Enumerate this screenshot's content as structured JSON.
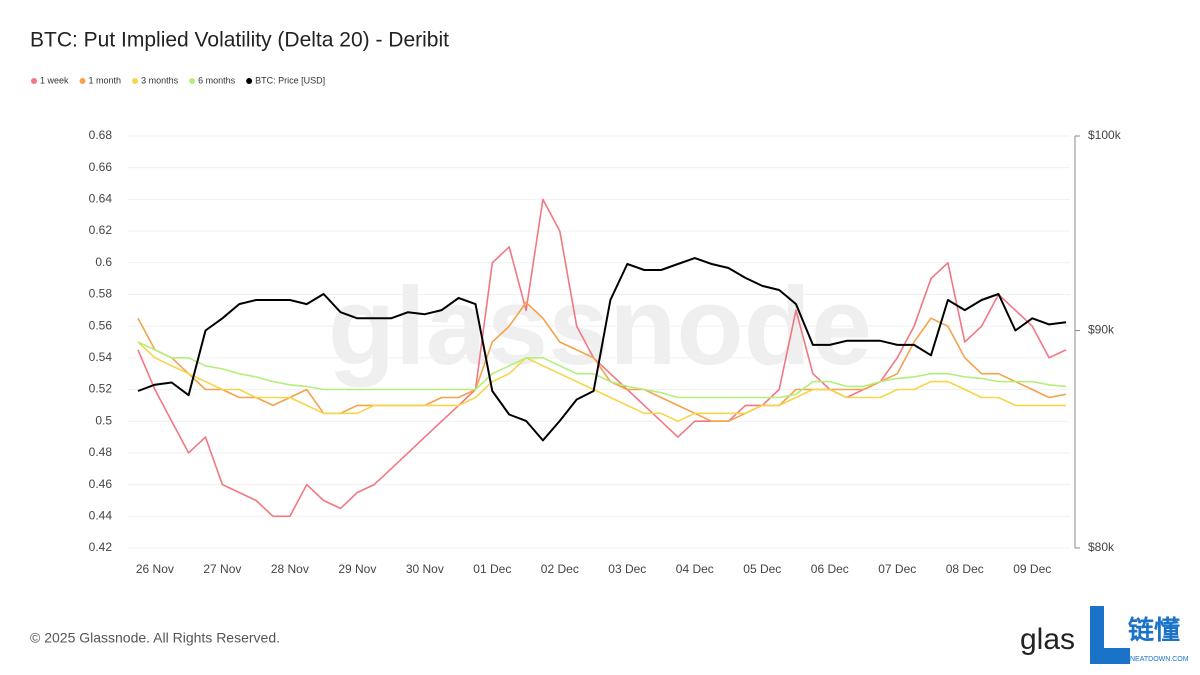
{
  "chart_data": {
    "type": "line",
    "title": "BTC: Put Implied Volatility (Delta 20) - Deribit",
    "watermark": "glassnode",
    "footer": "© 2025 Glassnode. All Rights Reserved.",
    "logo": "glas",
    "brand": "链懂",
    "brand_url": "NEATDOWN.COM",
    "categories": [
      null,
      "26 Nov",
      null,
      null,
      null,
      "27 Nov",
      null,
      null,
      null,
      "28 Nov",
      null,
      null,
      null,
      "29 Nov",
      null,
      null,
      null,
      "30 Nov",
      null,
      null,
      null,
      "01 Dec",
      null,
      null,
      null,
      "02 Dec",
      null,
      null,
      null,
      "03 Dec",
      null,
      null,
      null,
      "04 Dec",
      null,
      null,
      null,
      "05 Dec",
      null,
      null,
      null,
      "06 Dec",
      null,
      null,
      null,
      "07 Dec",
      null,
      null,
      null,
      "08 Dec",
      null,
      null,
      null,
      "09 Dec",
      null,
      null
    ],
    "ylim": [
      0.42,
      0.68
    ],
    "yticks": [
      0.42,
      0.44,
      0.46,
      0.48,
      0.5,
      0.52,
      0.54,
      0.56,
      0.58,
      0.6,
      0.62,
      0.64,
      0.66,
      0.68
    ],
    "y2lim": [
      80000,
      100000
    ],
    "y2ticks": [
      {
        "value": 80000,
        "label": "$80k"
      },
      {
        "value": 90000,
        "label": "$90k"
      },
      {
        "value": 100000,
        "label": "$100k"
      }
    ],
    "y2log": true,
    "grid": true,
    "legend": "top-left",
    "series": [
      {
        "name": "1 week",
        "color": "#f07883",
        "values": [
          0.545,
          0.52,
          0.5,
          0.48,
          0.49,
          0.46,
          0.455,
          0.45,
          0.44,
          0.44,
          0.46,
          0.45,
          0.445,
          0.455,
          0.46,
          0.47,
          0.48,
          0.49,
          0.5,
          0.51,
          0.52,
          0.6,
          0.61,
          0.57,
          0.64,
          0.62,
          0.56,
          0.54,
          0.53,
          0.52,
          0.51,
          0.5,
          0.49,
          0.5,
          0.5,
          0.5,
          0.51,
          0.51,
          0.52,
          0.57,
          0.53,
          0.52,
          0.515,
          0.52,
          0.525,
          0.54,
          0.56,
          0.59,
          0.6,
          0.55,
          0.56,
          0.58,
          0.57,
          0.56,
          0.54,
          0.545
        ]
      },
      {
        "name": "1 month",
        "color": "#f5a24c",
        "values": [
          0.565,
          0.545,
          0.54,
          0.53,
          0.52,
          0.52,
          0.515,
          0.515,
          0.51,
          0.515,
          0.52,
          0.505,
          0.505,
          0.51,
          0.51,
          0.51,
          0.51,
          0.51,
          0.515,
          0.515,
          0.52,
          0.55,
          0.56,
          0.575,
          0.565,
          0.55,
          0.545,
          0.54,
          0.525,
          0.52,
          0.52,
          0.515,
          0.51,
          0.505,
          0.5,
          0.5,
          0.505,
          0.51,
          0.51,
          0.52,
          0.52,
          0.52,
          0.52,
          0.52,
          0.525,
          0.53,
          0.55,
          0.565,
          0.56,
          0.54,
          0.53,
          0.53,
          0.525,
          0.52,
          0.515,
          0.517
        ]
      },
      {
        "name": "3 months",
        "color": "#f5d64a",
        "values": [
          0.55,
          0.54,
          0.535,
          0.53,
          0.525,
          0.52,
          0.52,
          0.515,
          0.515,
          0.515,
          0.51,
          0.505,
          0.505,
          0.505,
          0.51,
          0.51,
          0.51,
          0.51,
          0.51,
          0.51,
          0.515,
          0.525,
          0.53,
          0.54,
          0.535,
          0.53,
          0.525,
          0.52,
          0.515,
          0.51,
          0.505,
          0.505,
          0.5,
          0.505,
          0.505,
          0.505,
          0.505,
          0.51,
          0.51,
          0.515,
          0.52,
          0.52,
          0.515,
          0.515,
          0.515,
          0.52,
          0.52,
          0.525,
          0.525,
          0.52,
          0.515,
          0.515,
          0.51,
          0.51,
          0.51,
          0.51
        ]
      },
      {
        "name": "6 months",
        "color": "#b4ee7c",
        "values": [
          0.55,
          0.545,
          0.54,
          0.54,
          0.535,
          0.533,
          0.53,
          0.528,
          0.525,
          0.523,
          0.522,
          0.52,
          0.52,
          0.52,
          0.52,
          0.52,
          0.52,
          0.52,
          0.52,
          0.52,
          0.52,
          0.53,
          0.535,
          0.54,
          0.54,
          0.535,
          0.53,
          0.53,
          0.525,
          0.522,
          0.52,
          0.518,
          0.515,
          0.515,
          0.515,
          0.515,
          0.515,
          0.515,
          0.515,
          0.517,
          0.525,
          0.525,
          0.522,
          0.522,
          0.525,
          0.527,
          0.528,
          0.53,
          0.53,
          0.528,
          0.527,
          0.525,
          0.525,
          0.525,
          0.523,
          0.522
        ]
      },
      {
        "name": "BTC: Price [USD]",
        "color": "#000000",
        "axis": "y2",
        "values": [
          87100,
          87400,
          87500,
          86900,
          90000,
          90600,
          91300,
          91500,
          91500,
          91500,
          91300,
          91800,
          90900,
          90600,
          90600,
          90600,
          90900,
          90800,
          91000,
          91600,
          91300,
          87100,
          86000,
          85700,
          84800,
          85700,
          86700,
          87100,
          91500,
          93300,
          93000,
          93000,
          93300,
          93600,
          93300,
          93100,
          92600,
          92200,
          92000,
          91300,
          89300,
          89300,
          89500,
          89500,
          89500,
          89300,
          89300,
          88800,
          91500,
          91000,
          91500,
          91800,
          90000,
          90600,
          90300,
          90400
        ]
      }
    ]
  }
}
